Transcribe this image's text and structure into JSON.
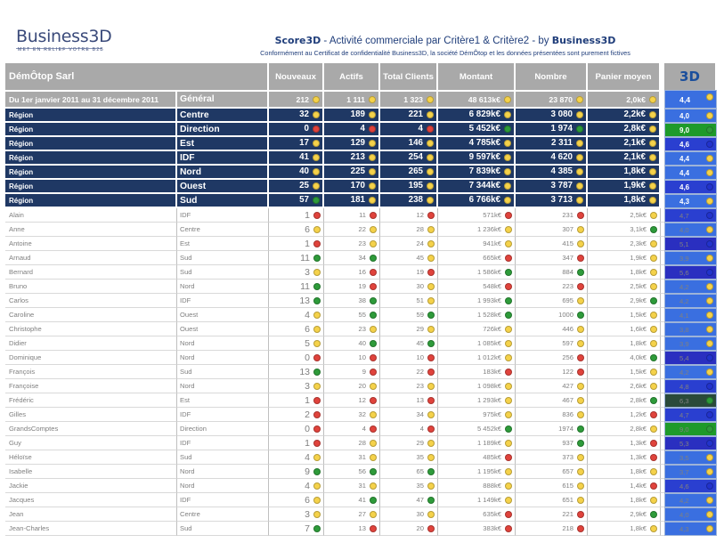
{
  "header": {
    "logo_main": "Business3D",
    "logo_sub": "MET EN RELIEF VOTRE B2B",
    "title_brand": "Score3D",
    "title_text": " - Activité commerciale par Critère1 & Critère2 - by ",
    "title_brand2": "Business3D",
    "subtitle": "Conformément au Certificat de confidentialité Business3D, la société DémÔtop et les données présentées sont purement fictives"
  },
  "columns": {
    "company": "DémÔtop Sarl",
    "nouveaux": "Nouveaux",
    "actifs": "Actifs",
    "total": "Total  Clients",
    "montant": "Montant",
    "nombre": "Nombre",
    "panier": "Panier moyen",
    "score": "3D"
  },
  "colors": {
    "green": "#2e9b3a",
    "yellow": "#f5d24a",
    "red": "#e0433c",
    "region_bg": "#1f3864",
    "header_bg": "#a9a9a9"
  },
  "summary": {
    "c1": "Du 1er janvier 2011 au 31 décembre 2011",
    "c2": "Général",
    "nouveaux": "212",
    "actifs": "1 111",
    "total": "1 323",
    "montant": "48 613k€",
    "nombre": "23 870",
    "panier": "2,0k€",
    "score": "4,4",
    "d": [
      "yellow",
      "yellow",
      "yellow",
      "yellow",
      "yellow",
      "yellow",
      "yellow"
    ],
    "score_bg": "#3a6fe0"
  },
  "regions": [
    {
      "c1": "Région",
      "c2": "Centre",
      "nouveaux": "32",
      "actifs": "189",
      "total": "221",
      "montant": "6 829k€",
      "nombre": "3 080",
      "panier": "2,2k€",
      "score": "4,0",
      "d": [
        "yellow",
        "yellow",
        "yellow",
        "yellow",
        "yellow",
        "yellow",
        "yellow"
      ],
      "score_bg": "#3a6fe0"
    },
    {
      "c1": "Région",
      "c2": "Direction",
      "nouveaux": "0",
      "actifs": "4",
      "total": "4",
      "montant": "5 452k€",
      "nombre": "1 974",
      "panier": "2,8k€",
      "score": "9,0",
      "d": [
        "red",
        "red",
        "red",
        "green",
        "green",
        "yellow",
        "green"
      ],
      "score_bg": "#1e9a2a"
    },
    {
      "c1": "Région",
      "c2": "Est",
      "nouveaux": "17",
      "actifs": "129",
      "total": "146",
      "montant": "4 785k€",
      "nombre": "2 311",
      "panier": "2,1k€",
      "score": "4,6",
      "d": [
        "yellow",
        "yellow",
        "yellow",
        "yellow",
        "yellow",
        "yellow",
        "blue"
      ],
      "score_bg": "#2a3fd0"
    },
    {
      "c1": "Région",
      "c2": "IDF",
      "nouveaux": "41",
      "actifs": "213",
      "total": "254",
      "montant": "9 597k€",
      "nombre": "4 620",
      "panier": "2,1k€",
      "score": "4,4",
      "d": [
        "yellow",
        "yellow",
        "yellow",
        "yellow",
        "yellow",
        "yellow",
        "yellow"
      ],
      "score_bg": "#3a6fe0"
    },
    {
      "c1": "Région",
      "c2": "Nord",
      "nouveaux": "40",
      "actifs": "225",
      "total": "265",
      "montant": "7 839k€",
      "nombre": "4 385",
      "panier": "1,8k€",
      "score": "4,4",
      "d": [
        "yellow",
        "yellow",
        "yellow",
        "yellow",
        "yellow",
        "yellow",
        "yellow"
      ],
      "score_bg": "#3a6fe0"
    },
    {
      "c1": "Région",
      "c2": "Ouest",
      "nouveaux": "25",
      "actifs": "170",
      "total": "195",
      "montant": "7 344k€",
      "nombre": "3 787",
      "panier": "1,9k€",
      "score": "4,6",
      "d": [
        "yellow",
        "yellow",
        "yellow",
        "yellow",
        "yellow",
        "yellow",
        "blue"
      ],
      "score_bg": "#2a3fd0"
    },
    {
      "c1": "Région",
      "c2": "Sud",
      "nouveaux": "57",
      "actifs": "181",
      "total": "238",
      "montant": "6 766k€",
      "nombre": "3 713",
      "panier": "1,8k€",
      "score": "4,3",
      "d": [
        "green",
        "yellow",
        "yellow",
        "yellow",
        "yellow",
        "yellow",
        "yellow"
      ],
      "score_bg": "#3a6fe0"
    }
  ],
  "people": [
    {
      "c1": "Alain",
      "c2": "IDF",
      "nouveaux": "1",
      "actifs": "11",
      "total": "12",
      "montant": "571k€",
      "nombre": "231",
      "panier": "2,5k€",
      "score": "4,7",
      "d": [
        "red",
        "red",
        "red",
        "red",
        "red",
        "yellow",
        "blue"
      ],
      "score_bg": "#2a3fd0"
    },
    {
      "c1": "Anne",
      "c2": "Centre",
      "nouveaux": "6",
      "actifs": "22",
      "total": "28",
      "montant": "1 236k€",
      "nombre": "307",
      "panier": "3,1k€",
      "score": "4,0",
      "d": [
        "yellow",
        "yellow",
        "yellow",
        "yellow",
        "yellow",
        "green",
        "yellow"
      ],
      "score_bg": "#3a6fe0"
    },
    {
      "c1": "Antoine",
      "c2": "Est",
      "nouveaux": "1",
      "actifs": "23",
      "total": "24",
      "montant": "941k€",
      "nombre": "415",
      "panier": "2,3k€",
      "score": "5,1",
      "d": [
        "red",
        "yellow",
        "yellow",
        "yellow",
        "yellow",
        "yellow",
        "blue"
      ],
      "score_bg": "#2a2fc0"
    },
    {
      "c1": "Arnaud",
      "c2": "Sud",
      "nouveaux": "11",
      "actifs": "34",
      "total": "45",
      "montant": "665k€",
      "nombre": "347",
      "panier": "1,9k€",
      "score": "3,9",
      "d": [
        "green",
        "green",
        "yellow",
        "red",
        "red",
        "yellow",
        "yellow"
      ],
      "score_bg": "#3a6fe0"
    },
    {
      "c1": "Bernard",
      "c2": "Sud",
      "nouveaux": "3",
      "actifs": "16",
      "total": "19",
      "montant": "1 586k€",
      "nombre": "884",
      "panier": "1,8k€",
      "score": "5,6",
      "d": [
        "yellow",
        "red",
        "red",
        "green",
        "green",
        "yellow",
        "blue"
      ],
      "score_bg": "#2a2fc0"
    },
    {
      "c1": "Bruno",
      "c2": "Nord",
      "nouveaux": "11",
      "actifs": "19",
      "total": "30",
      "montant": "548k€",
      "nombre": "223",
      "panier": "2,5k€",
      "score": "4,2",
      "d": [
        "green",
        "red",
        "yellow",
        "red",
        "red",
        "yellow",
        "yellow"
      ],
      "score_bg": "#3a6fe0"
    },
    {
      "c1": "Carlos",
      "c2": "IDF",
      "nouveaux": "13",
      "actifs": "38",
      "total": "51",
      "montant": "1 993k€",
      "nombre": "695",
      "panier": "2,9k€",
      "score": "4,2",
      "d": [
        "green",
        "green",
        "yellow",
        "green",
        "yellow",
        "green",
        "yellow"
      ],
      "score_bg": "#3a6fe0"
    },
    {
      "c1": "Caroline",
      "c2": "Ouest",
      "nouveaux": "4",
      "actifs": "55",
      "total": "59",
      "montant": "1 528k€",
      "nombre": "1000",
      "panier": "1,5k€",
      "score": "4,1",
      "d": [
        "yellow",
        "green",
        "green",
        "green",
        "green",
        "yellow",
        "yellow"
      ],
      "score_bg": "#3a6fe0"
    },
    {
      "c1": "Christophe",
      "c2": "Ouest",
      "nouveaux": "6",
      "actifs": "23",
      "total": "29",
      "montant": "726k€",
      "nombre": "446",
      "panier": "1,6k€",
      "score": "3,8",
      "d": [
        "yellow",
        "yellow",
        "yellow",
        "yellow",
        "yellow",
        "yellow",
        "yellow"
      ],
      "score_bg": "#3a6fe0"
    },
    {
      "c1": "Didier",
      "c2": "Nord",
      "nouveaux": "5",
      "actifs": "40",
      "total": "45",
      "montant": "1 085k€",
      "nombre": "597",
      "panier": "1,8k€",
      "score": "3,9",
      "d": [
        "yellow",
        "green",
        "green",
        "yellow",
        "yellow",
        "yellow",
        "yellow"
      ],
      "score_bg": "#3a6fe0"
    },
    {
      "c1": "Dominique",
      "c2": "Nord",
      "nouveaux": "0",
      "actifs": "10",
      "total": "10",
      "montant": "1 012k€",
      "nombre": "256",
      "panier": "4,0k€",
      "score": "5,4",
      "d": [
        "red",
        "red",
        "red",
        "yellow",
        "red",
        "green",
        "blue"
      ],
      "score_bg": "#2a2fc0"
    },
    {
      "c1": "François",
      "c2": "Sud",
      "nouveaux": "13",
      "actifs": "9",
      "total": "22",
      "montant": "183k€",
      "nombre": "122",
      "panier": "1,5k€",
      "score": "4,2",
      "d": [
        "green",
        "red",
        "red",
        "red",
        "red",
        "yellow",
        "yellow"
      ],
      "score_bg": "#3a6fe0"
    },
    {
      "c1": "Françoise",
      "c2": "Nord",
      "nouveaux": "3",
      "actifs": "20",
      "total": "23",
      "montant": "1 098k€",
      "nombre": "427",
      "panier": "2,6k€",
      "score": "4,8",
      "d": [
        "yellow",
        "yellow",
        "yellow",
        "yellow",
        "yellow",
        "yellow",
        "blue"
      ],
      "score_bg": "#2a3fd0"
    },
    {
      "c1": "Frédéric",
      "c2": "Est",
      "nouveaux": "1",
      "actifs": "12",
      "total": "13",
      "montant": "1 293k€",
      "nombre": "467",
      "panier": "2,8k€",
      "score": "6,3",
      "d": [
        "red",
        "red",
        "red",
        "yellow",
        "yellow",
        "green",
        "green"
      ],
      "score_bg": "#2a4a3a"
    },
    {
      "c1": "Gilles",
      "c2": "IDF",
      "nouveaux": "2",
      "actifs": "32",
      "total": "34",
      "montant": "975k€",
      "nombre": "836",
      "panier": "1,2k€",
      "score": "4,7",
      "d": [
        "red",
        "yellow",
        "yellow",
        "yellow",
        "yellow",
        "red",
        "blue"
      ],
      "score_bg": "#2a3fd0"
    },
    {
      "c1": "GrandsComptes",
      "c2": "Direction",
      "nouveaux": "0",
      "actifs": "4",
      "total": "4",
      "montant": "5 452k€",
      "nombre": "1974",
      "panier": "2,8k€",
      "score": "9,0",
      "d": [
        "red",
        "red",
        "red",
        "green",
        "green",
        "yellow",
        "green"
      ],
      "score_bg": "#1e9a2a"
    },
    {
      "c1": "Guy",
      "c2": "IDF",
      "nouveaux": "1",
      "actifs": "28",
      "total": "29",
      "montant": "1 189k€",
      "nombre": "937",
      "panier": "1,3k€",
      "score": "5,3",
      "d": [
        "red",
        "yellow",
        "yellow",
        "yellow",
        "green",
        "red",
        "blue"
      ],
      "score_bg": "#2a2fc0"
    },
    {
      "c1": "Héloïse",
      "c2": "Sud",
      "nouveaux": "4",
      "actifs": "31",
      "total": "35",
      "montant": "485k€",
      "nombre": "373",
      "panier": "1,3k€",
      "score": "3,5",
      "d": [
        "yellow",
        "yellow",
        "yellow",
        "red",
        "yellow",
        "red",
        "yellow"
      ],
      "score_bg": "#3a6fe0"
    },
    {
      "c1": "Isabelle",
      "c2": "Nord",
      "nouveaux": "9",
      "actifs": "56",
      "total": "65",
      "montant": "1 195k€",
      "nombre": "657",
      "panier": "1,8k€",
      "score": "3,7",
      "d": [
        "green",
        "green",
        "green",
        "yellow",
        "yellow",
        "yellow",
        "yellow"
      ],
      "score_bg": "#3a6fe0"
    },
    {
      "c1": "Jackie",
      "c2": "Nord",
      "nouveaux": "4",
      "actifs": "31",
      "total": "35",
      "montant": "888k€",
      "nombre": "615",
      "panier": "1,4k€",
      "score": "4,6",
      "d": [
        "yellow",
        "yellow",
        "yellow",
        "yellow",
        "yellow",
        "red",
        "blue"
      ],
      "score_bg": "#2a3fd0"
    },
    {
      "c1": "Jacques",
      "c2": "IDF",
      "nouveaux": "6",
      "actifs": "41",
      "total": "47",
      "montant": "1 149k€",
      "nombre": "651",
      "panier": "1,8k€",
      "score": "4,2",
      "d": [
        "yellow",
        "green",
        "green",
        "yellow",
        "yellow",
        "yellow",
        "yellow"
      ],
      "score_bg": "#3a6fe0"
    },
    {
      "c1": "Jean",
      "c2": "Centre",
      "nouveaux": "3",
      "actifs": "27",
      "total": "30",
      "montant": "635k€",
      "nombre": "221",
      "panier": "2,9k€",
      "score": "4,0",
      "d": [
        "yellow",
        "yellow",
        "yellow",
        "red",
        "red",
        "green",
        "yellow"
      ],
      "score_bg": "#3a6fe0"
    },
    {
      "c1": "Jean-Charles",
      "c2": "Sud",
      "nouveaux": "7",
      "actifs": "13",
      "total": "20",
      "montant": "383k€",
      "nombre": "218",
      "panier": "1,8k€",
      "score": "4,3",
      "d": [
        "green",
        "red",
        "red",
        "red",
        "red",
        "yellow",
        "yellow"
      ],
      "score_bg": "#3a6fe0"
    }
  ]
}
